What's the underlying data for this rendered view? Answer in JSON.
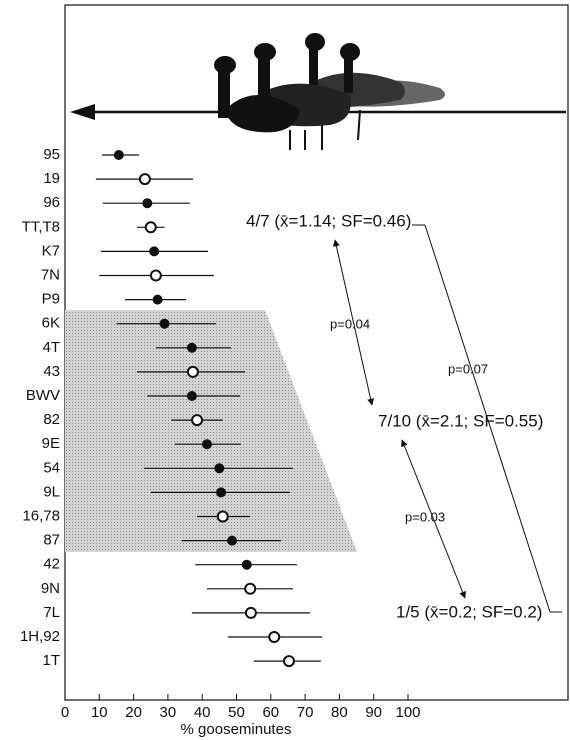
{
  "chart_data": {
    "type": "dot-range",
    "x_label": "% gooseminutes",
    "categories": [
      "95",
      "19",
      "96",
      "TT,T8",
      "K7",
      "7N",
      "P9",
      "6K",
      "4T",
      "43",
      "BWV",
      "82",
      "9E",
      "54",
      "9L",
      "16,78",
      "87",
      "42",
      "9N",
      "7L",
      "1H,92",
      "1T"
    ],
    "values": [
      15.7,
      23.3,
      24,
      25,
      26,
      26.5,
      27,
      29,
      37,
      37.3,
      37,
      38.5,
      41.4,
      45,
      45.5,
      46,
      48.7,
      53,
      54,
      54.2,
      61,
      65.3
    ],
    "low": [
      10.8,
      9,
      11,
      21,
      10.5,
      10,
      17.5,
      15,
      26.5,
      21,
      24,
      31,
      32,
      23,
      25,
      38.5,
      34,
      38,
      41.4,
      37,
      47.5,
      55
    ],
    "high": [
      21.6,
      37.3,
      36.4,
      29,
      41.7,
      43.4,
      35.3,
      44,
      48.4,
      52.5,
      51,
      46,
      51.3,
      66.5,
      65.6,
      54,
      63,
      67.6,
      66.5,
      71.4,
      75,
      74.6
    ],
    "filled": [
      true,
      false,
      true,
      false,
      true,
      false,
      true,
      true,
      true,
      false,
      true,
      false,
      true,
      true,
      true,
      false,
      true,
      true,
      false,
      false,
      false,
      false
    ],
    "color": "#111",
    "xlim": [
      0,
      100
    ],
    "xticks": [
      0,
      10,
      20,
      30,
      40,
      50,
      60,
      70,
      80,
      90,
      100
    ],
    "annotations": {
      "group_a": "4/7 (x̄=1.14; SF=0.46)",
      "group_b": "7/10 (x̄=2.1; SF=0.55)",
      "group_c": "1/5 (x̄=0.2; SF=0.2)",
      "p_ab": "p=0.04",
      "p_bc": "p=0.03",
      "p_ac": "p=0.07"
    }
  }
}
